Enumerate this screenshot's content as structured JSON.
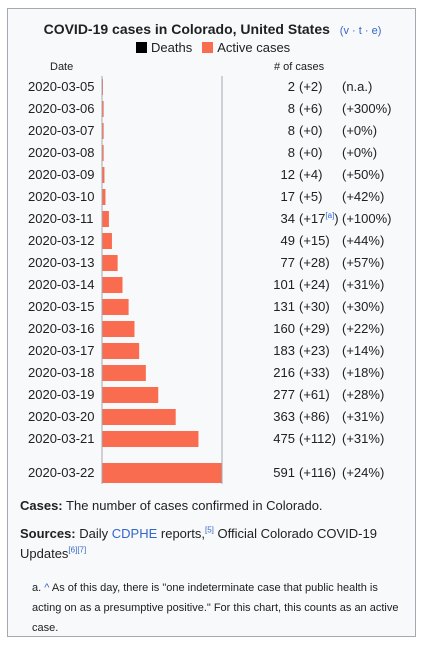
{
  "title": "COVID-19 cases in Colorado, United States",
  "vte": {
    "v": "v",
    "t": "t",
    "e": "e",
    "sep": "·"
  },
  "legend": {
    "deaths": {
      "label": "Deaths",
      "color": "#000000"
    },
    "active": {
      "label": "Active cases",
      "color": "#fa6c50"
    }
  },
  "headers": {
    "date": "Date",
    "cases": "# of cases"
  },
  "chart_data": {
    "type": "bar",
    "orientation": "horizontal",
    "xlim": [
      0,
      591
    ],
    "categories": [
      "2020-03-05",
      "2020-03-06",
      "2020-03-07",
      "2020-03-08",
      "2020-03-09",
      "2020-03-10",
      "2020-03-11",
      "2020-03-12",
      "2020-03-13",
      "2020-03-14",
      "2020-03-15",
      "2020-03-16",
      "2020-03-17",
      "2020-03-18",
      "2020-03-19",
      "2020-03-20",
      "2020-03-21",
      "2020-03-22"
    ],
    "series": [
      {
        "name": "Deaths",
        "values": [
          0,
          0,
          0,
          0,
          0,
          0,
          0,
          0,
          0,
          0,
          0,
          0,
          0,
          0,
          0,
          0,
          0,
          0
        ]
      },
      {
        "name": "Active cases",
        "values": [
          2,
          8,
          8,
          8,
          12,
          17,
          34,
          49,
          77,
          101,
          131,
          160,
          183,
          216,
          277,
          363,
          475,
          591
        ]
      }
    ],
    "totals": [
      "2",
      "8",
      "8",
      "8",
      "12",
      "17",
      "34",
      "49",
      "77",
      "101",
      "131",
      "160",
      "183",
      "216",
      "277",
      "363",
      "475",
      "591"
    ],
    "changes": [
      "(+2)",
      "(+6)",
      "(+0)",
      "(+0)",
      "(+4)",
      "(+5)",
      "(+17",
      "(+15)",
      "(+28)",
      "(+24)",
      "(+30)",
      "(+29)",
      "(+23)",
      "(+33)",
      "(+61)",
      "(+86)",
      "(+112)",
      "(+116)"
    ],
    "change_notes": [
      "",
      "",
      "",
      "",
      "",
      "",
      "[a]",
      "",
      "",
      "",
      "",
      "",
      "",
      "",
      "",
      "",
      "",
      ""
    ],
    "change_suffix": [
      "",
      "",
      "",
      "",
      "",
      "",
      ")",
      "",
      "",
      "",
      "",
      "",
      "",
      "",
      "",
      "",
      "",
      ""
    ],
    "percents": [
      "(n.a.)",
      "(+300%)",
      "(+0%)",
      "(+0%)",
      "(+50%)",
      "(+42%)",
      "(+100%)",
      "(+44%)",
      "(+57%)",
      "(+31%)",
      "(+30%)",
      "(+22%)",
      "(+14%)",
      "(+18%)",
      "(+28%)",
      "(+31%)",
      "(+31%)",
      "(+24%)"
    ]
  },
  "cases_note": {
    "label": "Cases:",
    "text": " The number of cases confirmed in Colorado."
  },
  "sources": {
    "label": "Sources:",
    "pre": " Daily ",
    "link": "CDPHE",
    "mid": " reports,",
    "ref1": "[5]",
    "post": " Official Colorado COVID-19 Updates",
    "ref2": "[6][7]"
  },
  "footnote": {
    "marker": "a.",
    "caret": "^",
    "text": "As of this day, there is \"one indeterminate case that public health is acting on as a presumptive positive.\" For this chart, this counts as an active case."
  }
}
